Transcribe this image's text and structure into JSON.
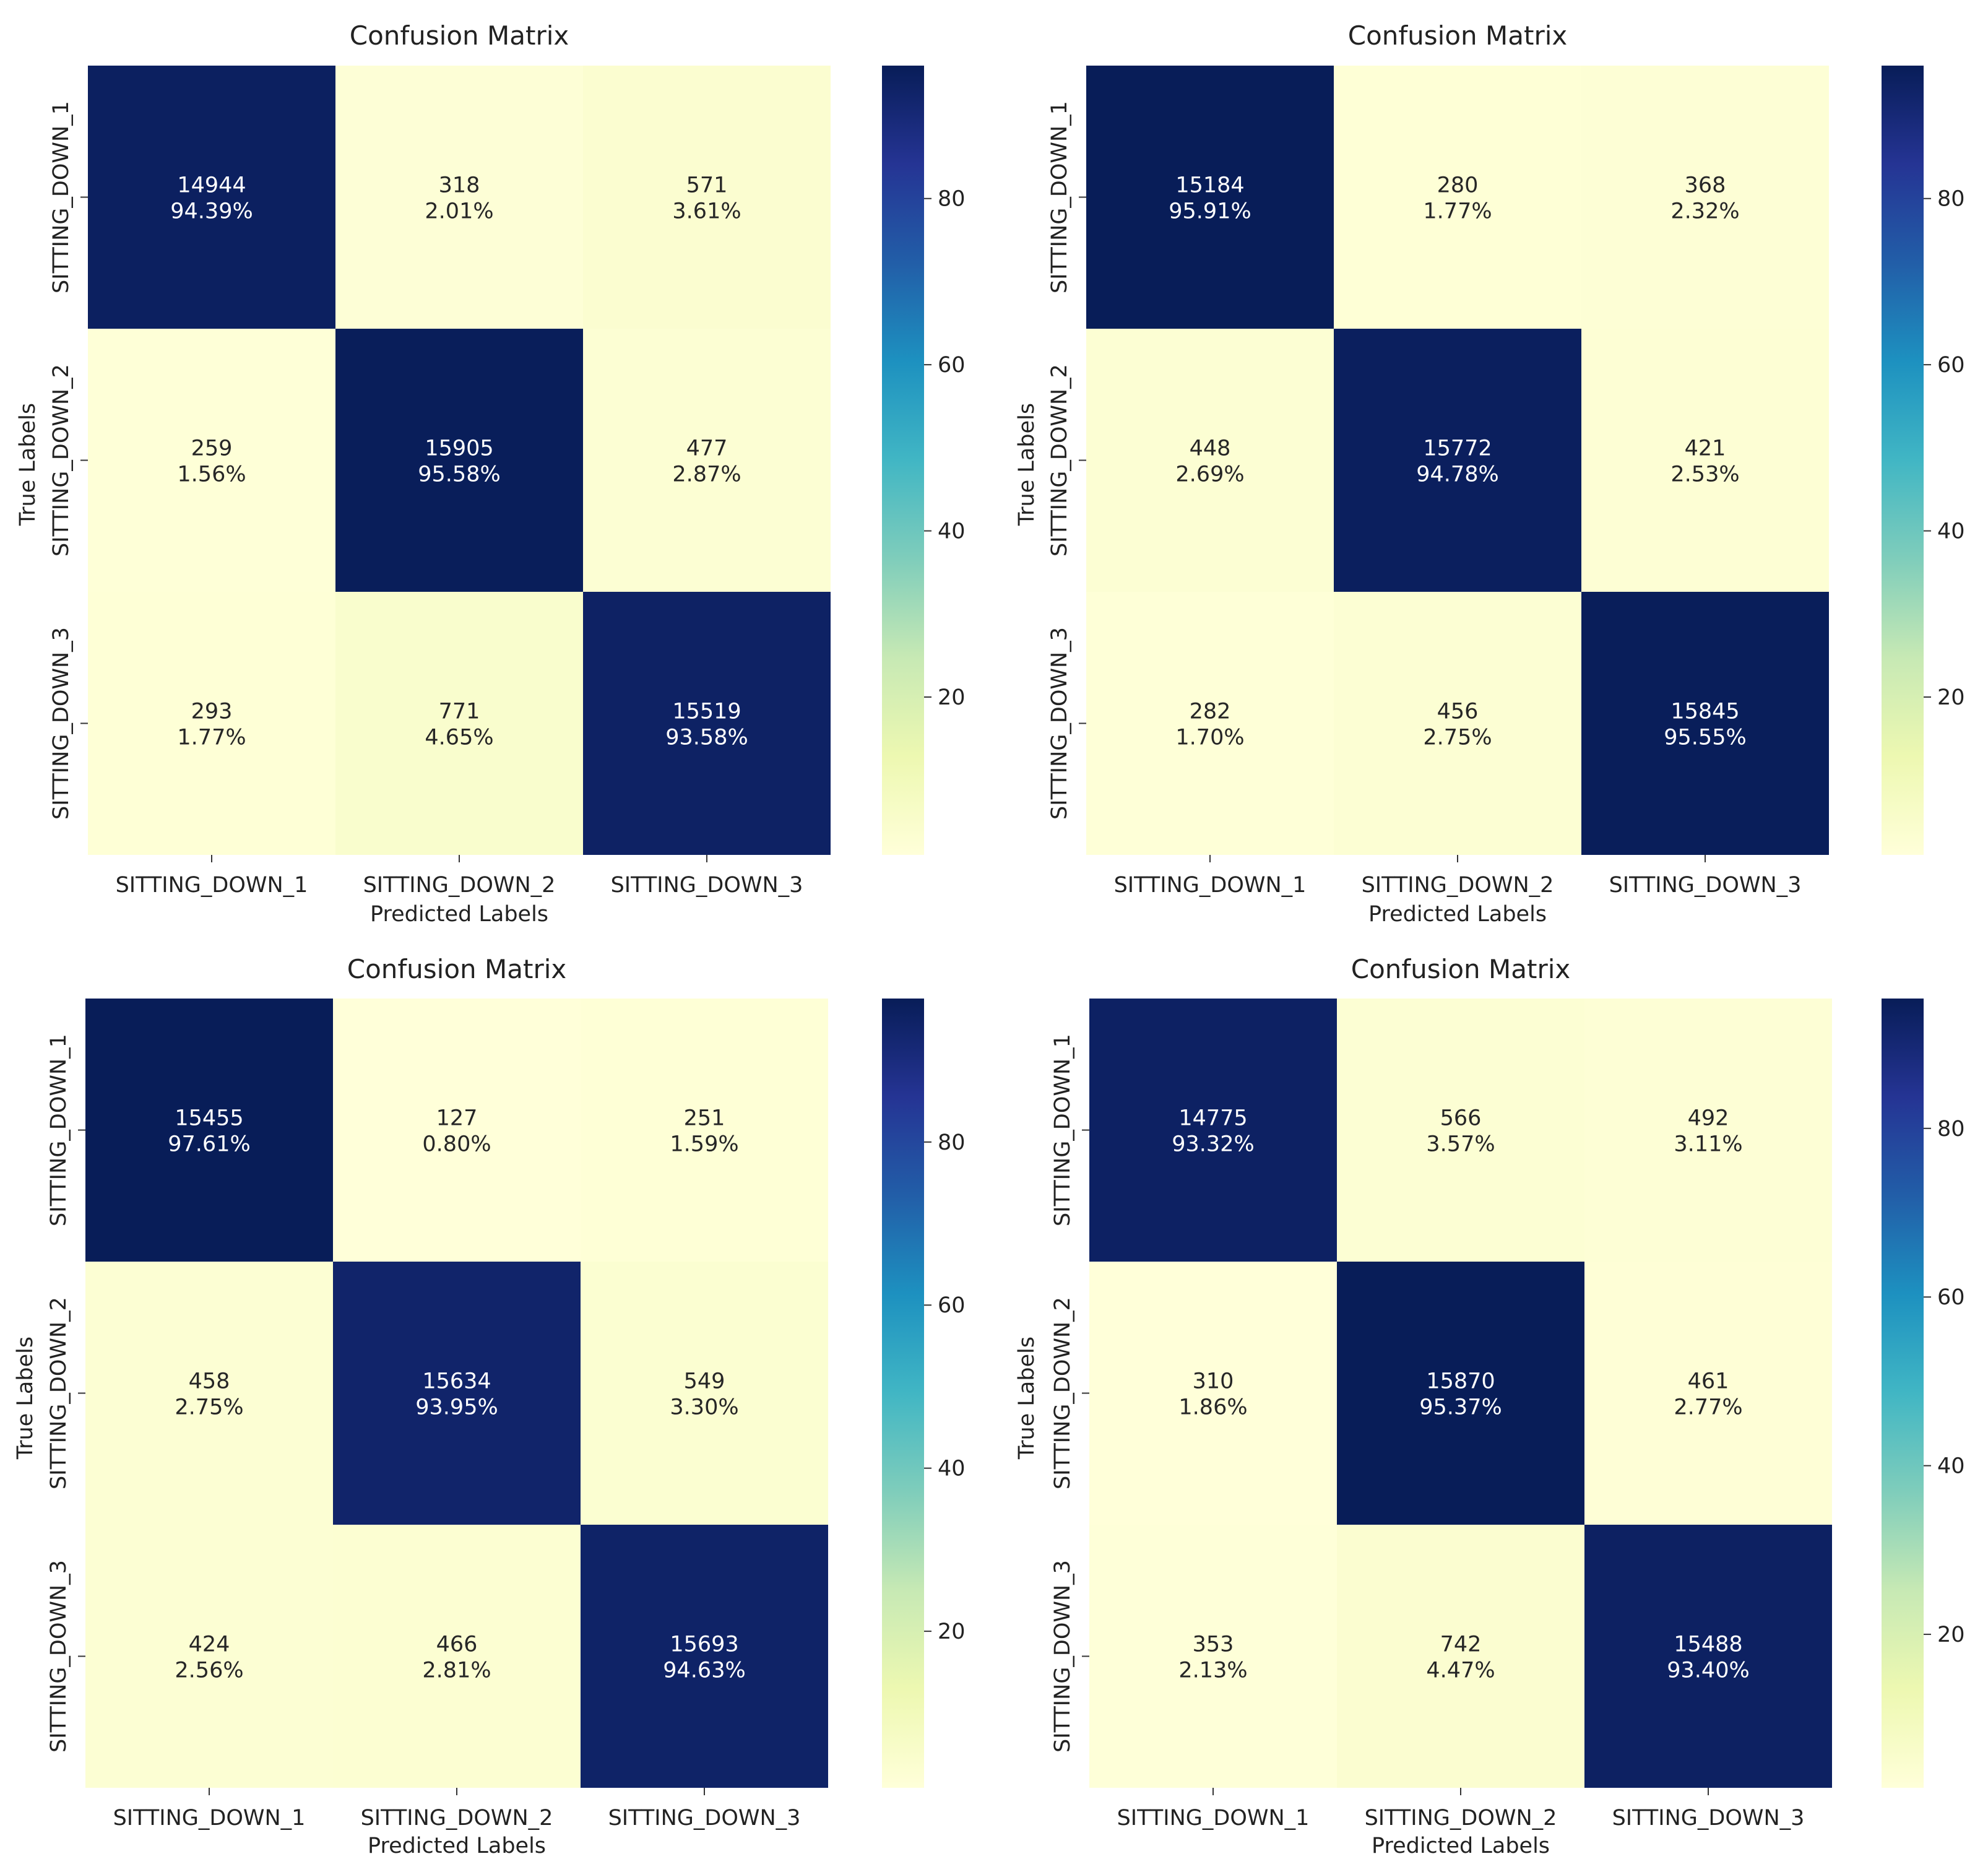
{
  "chart_data": [
    {
      "type": "heatmap",
      "title": "Confusion Matrix",
      "xlabel": "Predicted Labels",
      "ylabel": "True Labels",
      "x_categories": [
        "SITTING_DOWN_1",
        "SITTING_DOWN_2",
        "SITTING_DOWN_3"
      ],
      "y_categories": [
        "SITTING_DOWN_1",
        "SITTING_DOWN_2",
        "SITTING_DOWN_3"
      ],
      "counts": [
        [
          14944,
          318,
          571
        ],
        [
          259,
          15905,
          477
        ],
        [
          293,
          771,
          15519
        ]
      ],
      "percents": [
        [
          "94.39%",
          "2.01%",
          "3.61%"
        ],
        [
          "1.56%",
          "95.58%",
          "2.87%"
        ],
        [
          "1.77%",
          "4.65%",
          "93.58%"
        ]
      ],
      "colorbar": {
        "range": [
          1,
          96
        ],
        "ticks": [
          20,
          40,
          60,
          80
        ],
        "colormap": "YlGnBu"
      }
    },
    {
      "type": "heatmap",
      "title": "Confusion Matrix",
      "xlabel": "Predicted Labels",
      "ylabel": "True Labels",
      "x_categories": [
        "SITTING_DOWN_1",
        "SITTING_DOWN_2",
        "SITTING_DOWN_3"
      ],
      "y_categories": [
        "SITTING_DOWN_1",
        "SITTING_DOWN_2",
        "SITTING_DOWN_3"
      ],
      "counts": [
        [
          15184,
          280,
          368
        ],
        [
          448,
          15772,
          421
        ],
        [
          282,
          456,
          15845
        ]
      ],
      "percents": [
        [
          "95.91%",
          "1.77%",
          "2.32%"
        ],
        [
          "2.69%",
          "94.78%",
          "2.53%"
        ],
        [
          "1.70%",
          "2.75%",
          "95.55%"
        ]
      ],
      "colorbar": {
        "range": [
          1,
          96
        ],
        "ticks": [
          20,
          40,
          60,
          80
        ],
        "colormap": "YlGnBu"
      }
    },
    {
      "type": "heatmap",
      "title": "Confusion Matrix",
      "xlabel": "Predicted Labels",
      "ylabel": "True Labels",
      "x_categories": [
        "SITTING_DOWN_1",
        "SITTING_DOWN_2",
        "SITTING_DOWN_3"
      ],
      "y_categories": [
        "SITTING_DOWN_1",
        "SITTING_DOWN_2",
        "SITTING_DOWN_3"
      ],
      "counts": [
        [
          15455,
          127,
          251
        ],
        [
          458,
          15634,
          549
        ],
        [
          424,
          466,
          15693
        ]
      ],
      "percents": [
        [
          "97.61%",
          "0.80%",
          "1.59%"
        ],
        [
          "2.75%",
          "93.95%",
          "3.30%"
        ],
        [
          "2.56%",
          "2.81%",
          "94.63%"
        ]
      ],
      "colorbar": {
        "range": [
          0.8,
          97.6
        ],
        "ticks": [
          20,
          40,
          60,
          80
        ],
        "colormap": "YlGnBu"
      }
    },
    {
      "type": "heatmap",
      "title": "Confusion Matrix",
      "xlabel": "Predicted Labels",
      "ylabel": "True Labels",
      "x_categories": [
        "SITTING_DOWN_1",
        "SITTING_DOWN_2",
        "SITTING_DOWN_3"
      ],
      "y_categories": [
        "SITTING_DOWN_1",
        "SITTING_DOWN_2",
        "SITTING_DOWN_3"
      ],
      "counts": [
        [
          14775,
          566,
          492
        ],
        [
          310,
          15870,
          461
        ],
        [
          353,
          742,
          15488
        ]
      ],
      "percents": [
        [
          "93.32%",
          "3.57%",
          "3.11%"
        ],
        [
          "1.86%",
          "95.37%",
          "2.77%"
        ],
        [
          "2.13%",
          "4.47%",
          "93.40%"
        ]
      ],
      "colorbar": {
        "range": [
          1.8,
          95.4
        ],
        "ticks": [
          20,
          40,
          60,
          80
        ],
        "colormap": "YlGnBu"
      }
    }
  ]
}
